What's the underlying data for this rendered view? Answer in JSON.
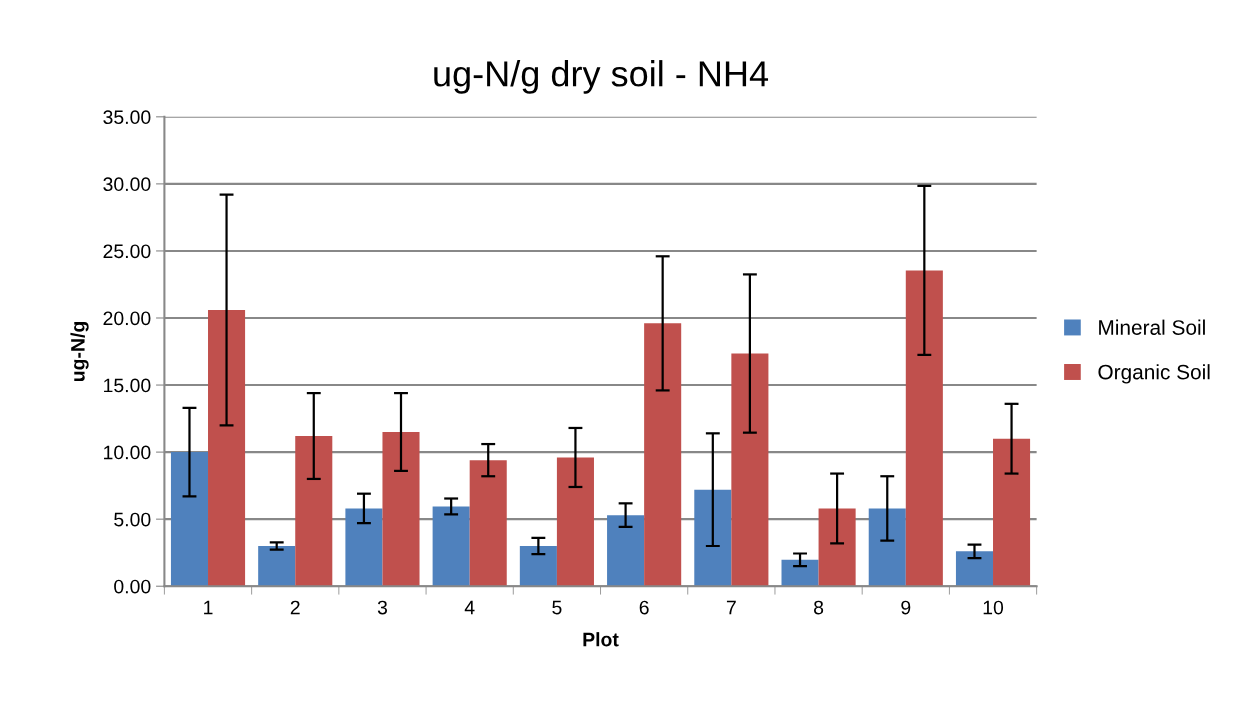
{
  "chart_data": {
    "type": "bar",
    "title": "ug-N/g dry soil - NH4",
    "xlabel": "Plot",
    "ylabel": "ug-N/g",
    "categories": [
      "1",
      "2",
      "3",
      "4",
      "5",
      "6",
      "7",
      "8",
      "9",
      "10"
    ],
    "series": [
      {
        "name": "Mineral Soil",
        "color": "#4f81bd",
        "values": [
          10.0,
          3.0,
          5.8,
          5.95,
          3.0,
          5.3,
          7.2,
          1.97,
          5.8,
          2.6
        ],
        "errors": [
          3.3,
          0.27,
          1.1,
          0.59,
          0.6,
          0.88,
          4.2,
          0.47,
          2.4,
          0.5
        ]
      },
      {
        "name": "Organic Soil",
        "color": "#c0504d",
        "values": [
          20.6,
          11.2,
          11.5,
          9.4,
          9.6,
          19.6,
          17.35,
          5.8,
          23.55,
          11.0
        ],
        "errors": [
          8.6,
          3.2,
          2.9,
          1.2,
          2.2,
          5.0,
          5.9,
          2.6,
          6.3,
          2.6
        ]
      }
    ],
    "ylim": [
      0,
      35
    ],
    "yticks": [
      {
        "value": 0,
        "label": "0.00"
      },
      {
        "value": 5,
        "label": "5.00"
      },
      {
        "value": 10,
        "label": "10.00"
      },
      {
        "value": 15,
        "label": "15.00"
      },
      {
        "value": 20,
        "label": "20.00"
      },
      {
        "value": 25,
        "label": "25.00"
      },
      {
        "value": 30,
        "label": "30.00"
      },
      {
        "value": 35,
        "label": "35.00"
      }
    ],
    "grid": "y",
    "legend": "right"
  }
}
